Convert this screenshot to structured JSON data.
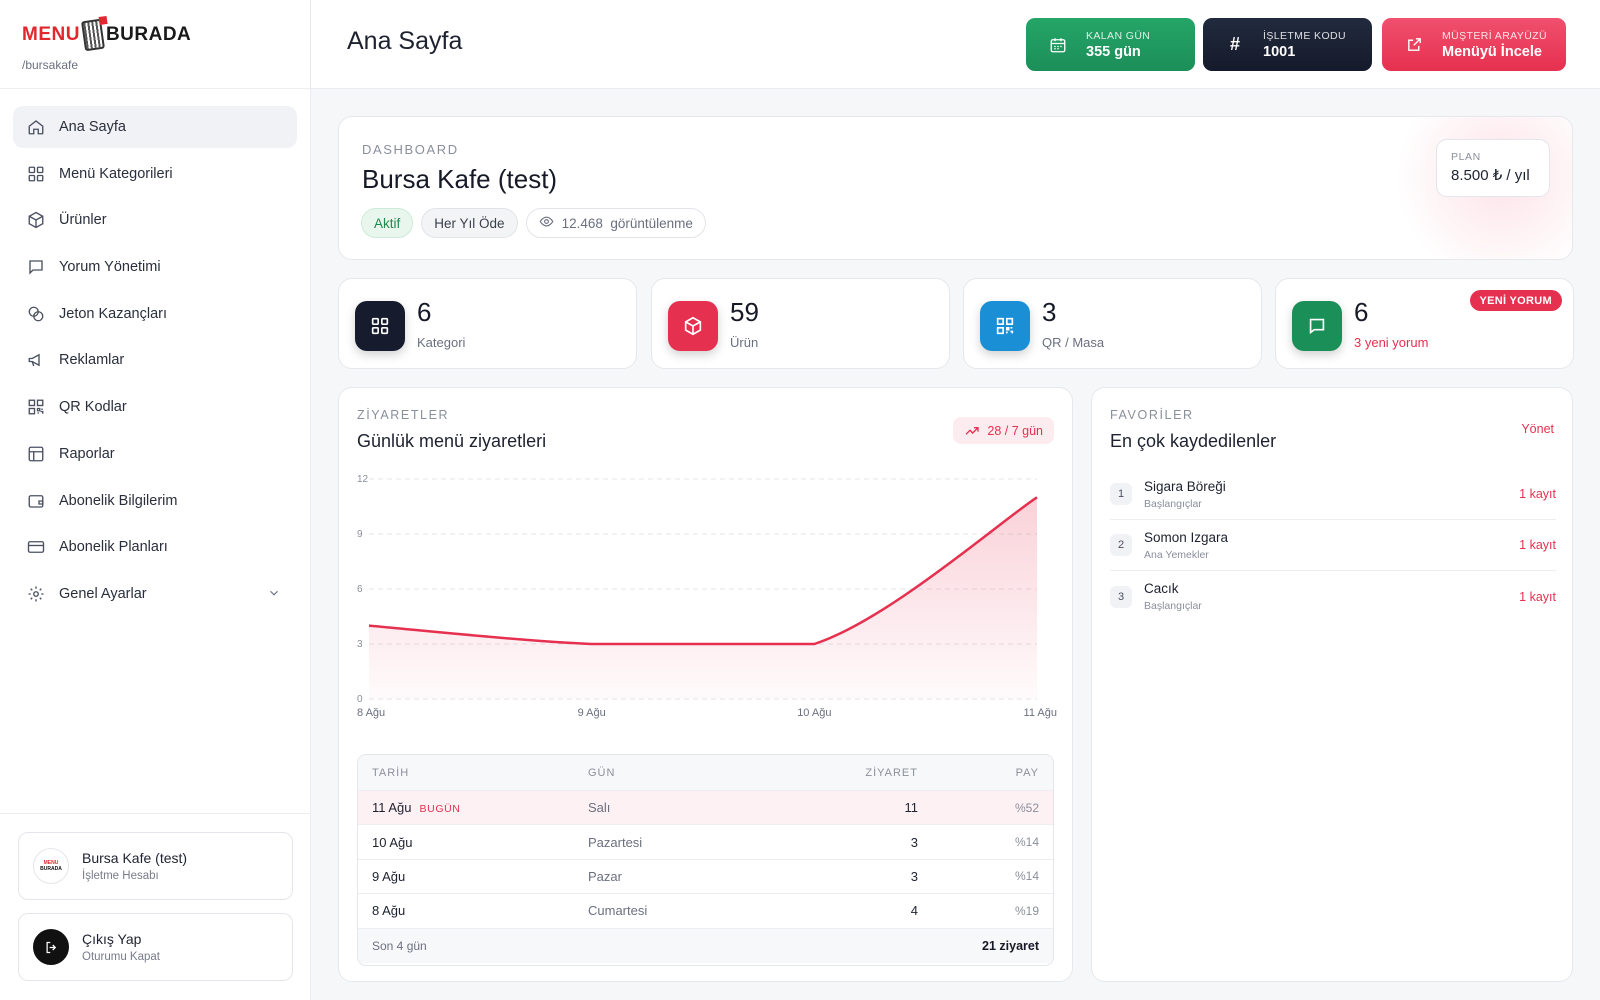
{
  "brand": {
    "logo_left": "MENU",
    "logo_right": "BURADA",
    "slug": "/bursakafe"
  },
  "sidebar": {
    "items": [
      {
        "label": "Ana Sayfa",
        "icon": "home-icon"
      },
      {
        "label": "Menü Kategorileri",
        "icon": "grid-icon"
      },
      {
        "label": "Ürünler",
        "icon": "box-icon"
      },
      {
        "label": "Yorum Yönetimi",
        "icon": "message-icon"
      },
      {
        "label": "Jeton Kazançları",
        "icon": "coins-icon"
      },
      {
        "label": "Reklamlar",
        "icon": "megaphone-icon"
      },
      {
        "label": "QR Kodlar",
        "icon": "qr-icon"
      },
      {
        "label": "Raporlar",
        "icon": "report-icon"
      },
      {
        "label": "Abonelik Bilgilerim",
        "icon": "wallet-icon"
      },
      {
        "label": "Abonelik Planları",
        "icon": "card-icon"
      },
      {
        "label": "Genel Ayarlar",
        "icon": "gear-icon"
      }
    ],
    "account": {
      "name": "Bursa Kafe (test)",
      "type": "İşletme Hesabı",
      "avatar_top": "MENU",
      "avatar_bottom": "BURADA"
    },
    "logout": {
      "label": "Çıkış Yap",
      "sub": "Oturumu Kapat"
    }
  },
  "header": {
    "title": "Ana Sayfa",
    "days": {
      "key": "KALAN GÜN",
      "value": "355 gün"
    },
    "code": {
      "key": "İŞLETME KODU",
      "value": "1001"
    },
    "customer": {
      "key": "MÜŞTERİ ARAYÜZÜ",
      "value": "Menüyü İncele"
    }
  },
  "dashboard": {
    "eyebrow": "DASHBOARD",
    "name": "Bursa Kafe (test)",
    "status": "Aktif",
    "billing": "Her Yıl Öde",
    "views": "12.468",
    "views_label": "görüntülenme",
    "plan_key": "PLAN",
    "plan_value": "8.500 ₺ / yıl"
  },
  "stats": [
    {
      "value": "6",
      "label": "Kategori",
      "color": "#161c2e"
    },
    {
      "value": "59",
      "label": "Ürün",
      "color": "#e6304f"
    },
    {
      "value": "3",
      "label": "QR / Masa",
      "color": "#1a8fd6"
    },
    {
      "value": "6",
      "label": "3 yeni yorum",
      "color": "#1b8f58",
      "badge": "YENİ YORUM"
    }
  ],
  "visits": {
    "eyebrow": "ZİYARETLER",
    "title": "Günlük menü ziyaretleri",
    "trend": "28 / 7 gün",
    "columns": [
      "TARİH",
      "GÜN",
      "ZİYARET",
      "PAY"
    ],
    "rows": [
      {
        "date": "11 Ağu",
        "tag": "BUGÜN",
        "day": "Salı",
        "visits": "11",
        "share": "%52"
      },
      {
        "date": "10 Ağu",
        "tag": "",
        "day": "Pazartesi",
        "visits": "3",
        "share": "%14"
      },
      {
        "date": "9 Ağu",
        "tag": "",
        "day": "Pazar",
        "visits": "3",
        "share": "%14"
      },
      {
        "date": "8 Ağu",
        "tag": "",
        "day": "Cumartesi",
        "visits": "4",
        "share": "%19"
      }
    ],
    "footer_left": "Son 4 gün",
    "footer_right": "21 ziyaret"
  },
  "chart_data": {
    "type": "area",
    "categories": [
      "8 Ağu",
      "9 Ağu",
      "10 Ağu",
      "11 Ağu"
    ],
    "values": [
      4,
      3,
      3,
      11
    ],
    "ylim": [
      0,
      12
    ],
    "y_ticks": [
      "0",
      "3",
      "6",
      "9",
      "12"
    ],
    "grid": true,
    "color": "#e6304f"
  },
  "favorites": {
    "eyebrow": "FAVORİLER",
    "title": "En çok kaydedilenler",
    "manage": "Yönet",
    "items": [
      {
        "rank": "1",
        "name": "Sigara Böreği",
        "category": "Başlangıçlar",
        "count": "1 kayıt"
      },
      {
        "rank": "2",
        "name": "Somon Izgara",
        "category": "Ana Yemekler",
        "count": "1 kayıt"
      },
      {
        "rank": "3",
        "name": "Cacık",
        "category": "Başlangıçlar",
        "count": "1 kayıt"
      }
    ]
  }
}
